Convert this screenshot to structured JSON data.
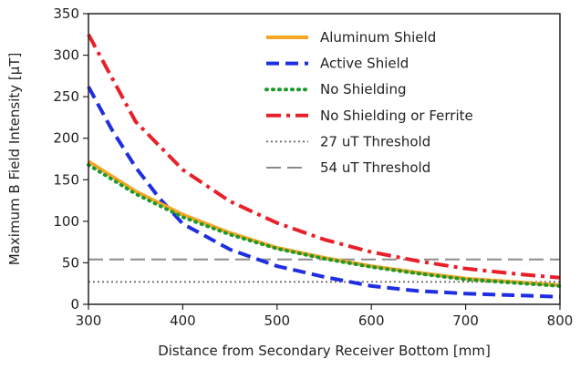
{
  "chart_data": {
    "type": "line",
    "title": "",
    "xlabel": "Distance from Secondary Receiver Bottom [mm]",
    "ylabel": "Maximum B Field Intensity [μT]",
    "xlim": [
      300,
      800
    ],
    "ylim": [
      0,
      350
    ],
    "x_ticks": [
      "300",
      "400",
      "500",
      "600",
      "700",
      "800"
    ],
    "y_ticks": [
      "0",
      "50",
      "100",
      "150",
      "200",
      "250",
      "300",
      "350"
    ],
    "legend_position": "top-right",
    "grid": false,
    "series": [
      {
        "name": "Aluminum Shield",
        "color": "#f5a623",
        "dash": "solid",
        "x": [
          300,
          350,
          400,
          450,
          500,
          550,
          600,
          650,
          700,
          750,
          800
        ],
        "y": [
          172,
          136,
          108,
          86,
          68,
          56,
          46,
          38,
          31,
          27,
          23
        ]
      },
      {
        "name": "Active Shield",
        "color": "#1f2ee0",
        "dash": "dashed",
        "x": [
          300,
          325,
          350,
          375,
          400,
          450,
          500,
          550,
          600,
          650,
          700,
          750,
          800
        ],
        "y": [
          262,
          210,
          165,
          128,
          97,
          66,
          46,
          33,
          22,
          16,
          13,
          11,
          9
        ]
      },
      {
        "name": "No Shielding",
        "color": "#1a9a2e",
        "dash": "dotted",
        "x": [
          300,
          350,
          400,
          450,
          500,
          550,
          600,
          650,
          700,
          750,
          800
        ],
        "y": [
          168,
          133,
          105,
          84,
          67,
          55,
          45,
          37,
          30,
          26,
          22
        ]
      },
      {
        "name": "No Shielding or Ferrite",
        "color": "#e8202a",
        "dash": "dashdot",
        "x": [
          300,
          350,
          400,
          450,
          500,
          550,
          600,
          650,
          700,
          750,
          800
        ],
        "y": [
          325,
          220,
          162,
          124,
          98,
          78,
          63,
          52,
          43,
          37,
          32
        ]
      },
      {
        "name": "27 uT Threshold",
        "color": "#666666",
        "dash": "fine-dotted",
        "x": [
          300,
          800
        ],
        "y": [
          27,
          27
        ]
      },
      {
        "name": "54 uT Threshold",
        "color": "#8a8a8a",
        "dash": "long-dashed",
        "x": [
          300,
          800
        ],
        "y": [
          54,
          54
        ]
      }
    ]
  }
}
